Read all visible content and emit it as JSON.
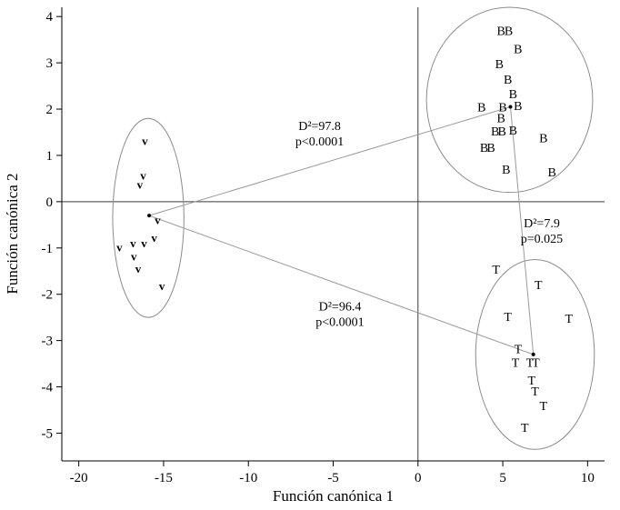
{
  "chart_data": {
    "type": "scatter",
    "title": "",
    "xlabel": "Función canónica 1",
    "ylabel": "Función canónica 2",
    "xlim": [
      -21,
      11
    ],
    "ylim": [
      -5.6,
      4.2
    ],
    "xticks": [
      -20,
      -15,
      -10,
      -5,
      0,
      5,
      10
    ],
    "yticks": [
      -5,
      -4,
      -3,
      -2,
      -1,
      0,
      1,
      2,
      3,
      4
    ],
    "grid": false,
    "legend": "none",
    "reference_lines": {
      "x": 0,
      "y": 0
    },
    "colors": {
      "ellipse": "#8c8c8c",
      "line": "#9a9a9a",
      "axis": "#000000",
      "reference": "#3a3a3a",
      "marker": "#000000"
    },
    "series": [
      {
        "name": "V",
        "marker": "v",
        "marker_size": 13,
        "marker_weight": "bold",
        "centroid": [
          -15.85,
          -0.3
        ],
        "ellipse": {
          "cx": -15.9,
          "cy": -0.35,
          "rx": 2.1,
          "ry": 2.15
        },
        "points": [
          [
            -16.1,
            1.31
          ],
          [
            -16.2,
            0.57
          ],
          [
            -16.4,
            0.37
          ],
          [
            -15.35,
            -0.4
          ],
          [
            -17.6,
            -0.98
          ],
          [
            -16.8,
            -0.9
          ],
          [
            -16.15,
            -0.9
          ],
          [
            -15.55,
            -0.78
          ],
          [
            -16.75,
            -1.18
          ],
          [
            -16.5,
            -1.45
          ],
          [
            -15.1,
            -1.82
          ]
        ]
      },
      {
        "name": "B",
        "marker": "B",
        "marker_size": 14,
        "marker_weight": "normal",
        "centroid": [
          5.45,
          2.05
        ],
        "ellipse": {
          "cx": 5.4,
          "cy": 2.2,
          "rx": 4.9,
          "ry": 2.0
        },
        "points": [
          [
            4.9,
            3.67
          ],
          [
            5.35,
            3.67
          ],
          [
            5.9,
            3.28
          ],
          [
            4.8,
            2.95
          ],
          [
            5.3,
            2.62
          ],
          [
            5.6,
            2.3
          ],
          [
            3.75,
            2.02
          ],
          [
            5.0,
            2.02
          ],
          [
            5.9,
            2.05
          ],
          [
            4.9,
            1.78
          ],
          [
            4.55,
            1.5
          ],
          [
            4.95,
            1.5
          ],
          [
            5.6,
            1.52
          ],
          [
            7.4,
            1.35
          ],
          [
            3.9,
            1.15
          ],
          [
            4.3,
            1.15
          ],
          [
            5.2,
            0.67
          ],
          [
            7.9,
            0.62
          ]
        ]
      },
      {
        "name": "T",
        "marker": "T",
        "marker_size": 14,
        "marker_weight": "normal",
        "centroid": [
          6.8,
          -3.3
        ],
        "ellipse": {
          "cx": 6.9,
          "cy": -3.3,
          "rx": 3.5,
          "ry": 2.05
        },
        "points": [
          [
            4.6,
            -1.49
          ],
          [
            7.1,
            -1.82
          ],
          [
            5.3,
            -2.51
          ],
          [
            8.9,
            -2.55
          ],
          [
            5.9,
            -3.2
          ],
          [
            5.75,
            -3.5
          ],
          [
            6.6,
            -3.5
          ],
          [
            6.95,
            -3.5
          ],
          [
            6.7,
            -3.88
          ],
          [
            6.9,
            -4.12
          ],
          [
            7.4,
            -4.43
          ],
          [
            6.3,
            -4.9
          ]
        ]
      }
    ],
    "comparisons": [
      {
        "pair": [
          "V",
          "B"
        ],
        "d2": "D²=97.8",
        "p": "p<0.0001",
        "label_at": [
          -5.8,
          1.55
        ]
      },
      {
        "pair": [
          "B",
          "T"
        ],
        "d2": "D²=7.9",
        "p": "p=0.025",
        "label_at": [
          7.3,
          -0.55
        ]
      },
      {
        "pair": [
          "V",
          "T"
        ],
        "d2": "D²=96.4",
        "p": "p<0.0001",
        "label_at": [
          -4.6,
          -2.35
        ]
      }
    ]
  }
}
